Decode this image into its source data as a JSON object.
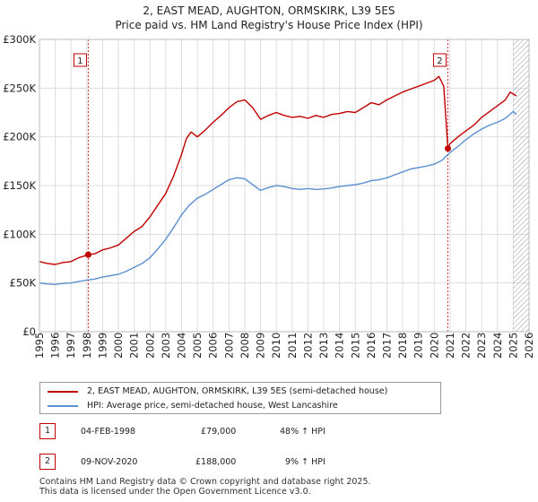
{
  "title": {
    "line1": "2, EAST MEAD, AUGHTON, ORMSKIRK, L39 5ES",
    "line2": "Price paid vs. HM Land Registry's House Price Index (HPI)"
  },
  "chart_data": {
    "type": "line",
    "title": "2, EAST MEAD, AUGHTON, ORMSKIRK, L39 5ES — Price paid vs. HM Land Registry's House Price Index (HPI)",
    "xlabel": "",
    "ylabel": "",
    "xlim": [
      1995,
      2026
    ],
    "ylim": [
      0,
      300000
    ],
    "x_ticks": [
      1995,
      1996,
      1997,
      1998,
      1999,
      2000,
      2001,
      2002,
      2003,
      2004,
      2005,
      2006,
      2007,
      2008,
      2009,
      2010,
      2011,
      2012,
      2013,
      2014,
      2015,
      2016,
      2017,
      2018,
      2019,
      2020,
      2021,
      2022,
      2023,
      2024,
      2025,
      2026
    ],
    "y_ticks": [
      {
        "value": 0,
        "label": "£0"
      },
      {
        "value": 50000,
        "label": "£50K"
      },
      {
        "value": 100000,
        "label": "£100K"
      },
      {
        "value": 150000,
        "label": "£150K"
      },
      {
        "value": 200000,
        "label": "£200K"
      },
      {
        "value": 250000,
        "label": "£250K"
      },
      {
        "value": 300000,
        "label": "£300K"
      }
    ],
    "grid": true,
    "forecast_hatch_from": 2025.0,
    "series": [
      {
        "name": "2, EAST MEAD, AUGHTON, ORMSKIRK, L39 5ES (semi-detached house)",
        "color": "#c00000",
        "x": [
          1995.0,
          1995.5,
          1996.0,
          1996.5,
          1997.0,
          1997.5,
          1998.09,
          1998.5,
          1999.0,
          1999.5,
          2000.0,
          2000.5,
          2001.0,
          2001.5,
          2002.0,
          2002.5,
          2003.0,
          2003.5,
          2004.0,
          2004.3,
          2004.6,
          2005.0,
          2005.5,
          2006.0,
          2006.5,
          2007.0,
          2007.5,
          2008.0,
          2008.5,
          2009.0,
          2009.5,
          2010.0,
          2010.5,
          2011.0,
          2011.5,
          2012.0,
          2012.5,
          2013.0,
          2013.5,
          2014.0,
          2014.5,
          2015.0,
          2015.5,
          2016.0,
          2016.5,
          2017.0,
          2017.5,
          2018.0,
          2018.5,
          2019.0,
          2019.5,
          2020.0,
          2020.3,
          2020.6,
          2020.86,
          2021.0,
          2021.5,
          2022.0,
          2022.5,
          2023.0,
          2023.5,
          2024.0,
          2024.5,
          2024.8,
          2025.0,
          2025.2
        ],
        "values": [
          72000,
          70000,
          69000,
          71000,
          72000,
          76000,
          79000,
          80000,
          84000,
          86000,
          89000,
          96000,
          103000,
          108000,
          118000,
          130000,
          142000,
          160000,
          182000,
          198000,
          205000,
          200000,
          207000,
          215000,
          222000,
          230000,
          236000,
          238000,
          230000,
          218000,
          222000,
          225000,
          222000,
          220000,
          221000,
          219000,
          222000,
          220000,
          223000,
          224000,
          226000,
          225000,
          230000,
          235000,
          233000,
          238000,
          242000,
          246000,
          249000,
          252000,
          255000,
          258000,
          262000,
          252000,
          188000,
          193000,
          200000,
          206000,
          212000,
          220000,
          226000,
          232000,
          238000,
          246000,
          244000,
          242000
        ]
      },
      {
        "name": "HPI: Average price, semi-detached house, West Lancashire",
        "color": "#5b8fd1",
        "x": [
          1995.0,
          1995.5,
          1996.0,
          1996.5,
          1997.0,
          1997.5,
          1998.0,
          1998.5,
          1999.0,
          1999.5,
          2000.0,
          2000.5,
          2001.0,
          2001.5,
          2002.0,
          2002.5,
          2003.0,
          2003.5,
          2004.0,
          2004.5,
          2005.0,
          2005.5,
          2006.0,
          2006.5,
          2007.0,
          2007.5,
          2008.0,
          2008.5,
          2009.0,
          2009.5,
          2010.0,
          2010.5,
          2011.0,
          2011.5,
          2012.0,
          2012.5,
          2013.0,
          2013.5,
          2014.0,
          2014.5,
          2015.0,
          2015.5,
          2016.0,
          2016.5,
          2017.0,
          2017.5,
          2018.0,
          2018.5,
          2019.0,
          2019.5,
          2020.0,
          2020.5,
          2021.0,
          2021.5,
          2022.0,
          2022.5,
          2023.0,
          2023.5,
          2024.0,
          2024.5,
          2025.0,
          2025.2
        ],
        "values": [
          50000,
          49000,
          48500,
          49500,
          50000,
          51500,
          53000,
          54000,
          56000,
          57500,
          59000,
          62000,
          66000,
          70000,
          76000,
          85000,
          95000,
          107000,
          120000,
          130000,
          137000,
          141000,
          146000,
          151000,
          156000,
          158000,
          157000,
          151000,
          145000,
          148000,
          150000,
          149000,
          147000,
          146000,
          147000,
          146000,
          146500,
          147500,
          149000,
          150000,
          151000,
          152500,
          155000,
          156000,
          158000,
          161000,
          164000,
          167000,
          168500,
          170000,
          172000,
          176000,
          184000,
          190000,
          197000,
          203000,
          208000,
          212000,
          215000,
          219000,
          226000,
          223000
        ]
      }
    ],
    "sales": [
      {
        "id": "1",
        "x": 1998.09,
        "value": 79000,
        "date": "04-FEB-1998",
        "price": "£79,000",
        "hpi_change": "48% ↑ HPI"
      },
      {
        "id": "2",
        "x": 2020.86,
        "value": 188000,
        "date": "09-NOV-2020",
        "price": "£188,000",
        "hpi_change": "9% ↑ HPI"
      }
    ]
  },
  "legend": {
    "series1": "2, EAST MEAD, AUGHTON, ORMSKIRK, L39 5ES (semi-detached house)",
    "series2": "HPI: Average price, semi-detached house, West Lancashire"
  },
  "table": [
    {
      "id": "1",
      "date": "04-FEB-1998",
      "price": "£79,000",
      "hpi": "48% ↑ HPI"
    },
    {
      "id": "2",
      "date": "09-NOV-2020",
      "price": "£188,000",
      "hpi": "9% ↑ HPI"
    }
  ],
  "footer": {
    "line1": "Contains HM Land Registry data © Crown copyright and database right 2025.",
    "line2": "This data is licensed under the Open Government Licence v3.0."
  },
  "colors": {
    "property": "#c00000",
    "hpi": "#5b8fd1",
    "grid": "#dddddd",
    "axis_bg": "#ffffff"
  }
}
